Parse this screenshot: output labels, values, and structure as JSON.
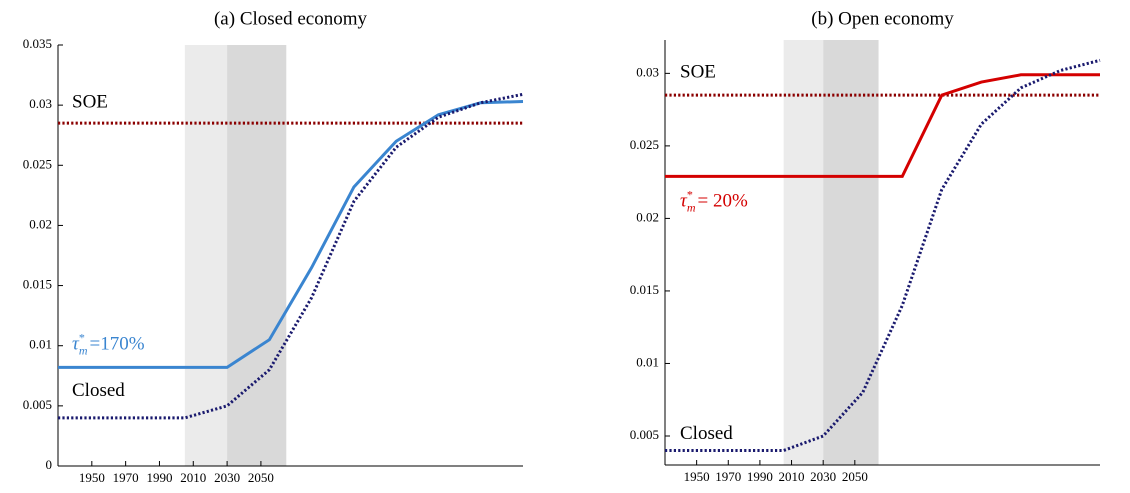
{
  "chart_data": [
    {
      "type": "line",
      "title": "(a) Closed economy",
      "x": [
        1930,
        2005,
        2030,
        2055,
        2080,
        2105,
        2130,
        2155,
        2180,
        2205
      ],
      "xlim": [
        1930,
        2205
      ],
      "xticks": [
        1950,
        1970,
        1990,
        2010,
        2030,
        2050
      ],
      "ylim": [
        0,
        0.035
      ],
      "yticks": [
        0,
        0.005,
        0.01,
        0.015,
        0.02,
        0.025,
        0.03,
        0.035
      ],
      "shaded_spans": [
        {
          "from": 2005,
          "to": 2030,
          "color": "#ebebeb"
        },
        {
          "from": 2030,
          "to": 2065,
          "color": "#d9d9d9"
        }
      ],
      "series": [
        {
          "name": "SOE",
          "color": "#8b0000",
          "style": "dotted",
          "values": [
            0.0285,
            0.0285,
            0.0285,
            0.0285,
            0.0285,
            0.0285,
            0.0285,
            0.0285,
            0.0285,
            0.0285
          ]
        },
        {
          "label": {
            "symbol": "τ",
            "sup": "*",
            "sub": "m",
            "text": "=170%"
          },
          "color": "#3a85d0",
          "style": "solid",
          "values": [
            0.0082,
            0.0082,
            0.0082,
            0.0105,
            0.0165,
            0.0232,
            0.027,
            0.0292,
            0.0302,
            0.0303
          ]
        },
        {
          "name": "Closed",
          "color": "#1a1a6e",
          "style": "dotted",
          "values": [
            0.004,
            0.004,
            0.005,
            0.008,
            0.014,
            0.022,
            0.0265,
            0.029,
            0.0302,
            0.0309
          ]
        }
      ]
    },
    {
      "type": "line",
      "title": "(b) Open economy",
      "x": [
        1930,
        2005,
        2030,
        2055,
        2080,
        2105,
        2130,
        2155,
        2180,
        2205
      ],
      "xlim": [
        1930,
        2205
      ],
      "xticks": [
        1950,
        1970,
        1990,
        2010,
        2030,
        2050
      ],
      "ylim": [
        0.003,
        0.0323
      ],
      "yticks": [
        0.005,
        0.01,
        0.015,
        0.02,
        0.025,
        0.03
      ],
      "shaded_spans": [
        {
          "from": 2005,
          "to": 2030,
          "color": "#ebebeb"
        },
        {
          "from": 2030,
          "to": 2065,
          "color": "#d9d9d9"
        }
      ],
      "series": [
        {
          "name": "SOE",
          "color": "#8b0000",
          "style": "dotted",
          "values": [
            0.0285,
            0.0285,
            0.0285,
            0.0285,
            0.0285,
            0.0285,
            0.0285,
            0.0285,
            0.0285,
            0.0285
          ]
        },
        {
          "label": {
            "symbol": "τ",
            "sup": "*",
            "sub": "m",
            "text": "= 20%"
          },
          "color": "#d40000",
          "style": "solid",
          "values": [
            0.0229,
            0.0229,
            0.0229,
            0.0229,
            0.0229,
            0.0285,
            0.0294,
            0.0299,
            0.0299,
            0.0299
          ]
        },
        {
          "name": "Closed",
          "color": "#1a1a6e",
          "style": "dotted",
          "values": [
            0.004,
            0.004,
            0.005,
            0.008,
            0.014,
            0.022,
            0.0265,
            0.029,
            0.0302,
            0.0309
          ]
        }
      ]
    }
  ]
}
